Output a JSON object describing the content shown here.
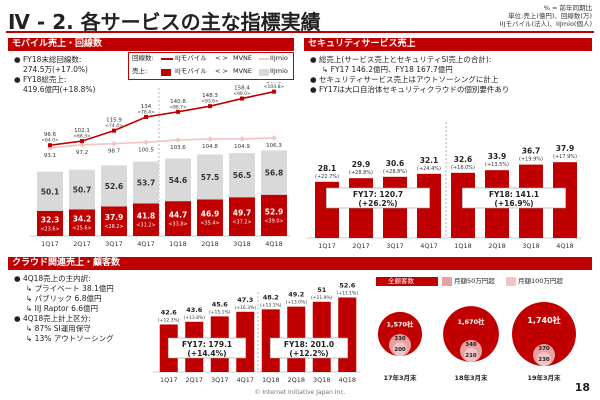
{
  "header": {
    "title": "Ⅳ - 2.  各サービスの主な指標実績",
    "notes": [
      "% = 前年同期比",
      "単位:売上(億円)、回線数(万)",
      "IIJモバイル(法人)、IIJmio(個人)"
    ]
  },
  "mobile": {
    "heading": "モバイル売上・回線数",
    "bullets": [
      "FY18末総回線数:",
      "274.5万(+17.0%)",
      "FY18総売上:",
      "419.6億円(+18.8%)"
    ],
    "legend": {
      "lines_label": "回線数:",
      "sales_label": "売上:",
      "iij_mobile": "IIJモバイル",
      "mvne": "MVNE",
      "iijmio": "IIJmio",
      "separator": "< >"
    }
  },
  "security": {
    "heading": "セキュリティサービス売上",
    "bullets": [
      "総売上(サービス売上とセキュリティSI売上の合計):",
      "FY17 146.2億円、FY18 167.7億円",
      "セキュリティサービス売上はアウトソーシングに計上",
      "FY17は大口自治体セキュリティクラウドの個別要件あり"
    ],
    "fy17_label": "FY17: 120.7",
    "fy17_pct": "(+26.2%)",
    "fy18_label": "FY18: 141.1",
    "fy18_pct": "(+16.9%)"
  },
  "cloud": {
    "heading": "クラウド関連売上・顧客数",
    "bullets": [
      "4Q18売上の主内訳:",
      "プライベート 38.1億円",
      "パブリック  6.8億円",
      "IIJ Raptor  6.6億円",
      "4Q18売上計上区分:",
      "87%  SI運用保守",
      "13%  アウトソーシング"
    ],
    "fy17_label": "FY17: 179.1",
    "fy17_pct": "(+14.4%)",
    "fy18_label": "FY18: 201.0",
    "fy18_pct": "(+12.2%)",
    "customers": {
      "legend": [
        "全顧客数",
        "月額50万円超",
        "月額100万円超"
      ],
      "years": [
        "17年3月末",
        "18年3月末",
        "19年3月末"
      ],
      "total": [
        "1,570社",
        "1,670社",
        "1,740社"
      ],
      "over50": [
        "330",
        "340",
        "370"
      ],
      "over100": [
        "200",
        "210",
        "230"
      ]
    }
  },
  "footer": {
    "copyright": "© Internet Initiative Japan Inc.",
    "page": "18"
  },
  "colors": {
    "accent": "#c00000",
    "mid_red": "#d83b3b",
    "light_red": "#e8a0a0",
    "pink": "#f2c4c4",
    "gray": "#d9d9d9"
  },
  "chart_data": [
    {
      "type": "bar",
      "title": "モバイル売上・回線数",
      "categories": [
        "1Q17",
        "2Q17",
        "3Q17",
        "4Q17",
        "1Q18",
        "2Q18",
        "3Q18",
        "4Q18"
      ],
      "series": [
        {
          "name": "IIJモバイル",
          "values": [
            32.3,
            34.2,
            37.9,
            41.8,
            44.7,
            46.9,
            49.7,
            52.9
          ],
          "labels": [
            "<23.6>",
            "<25.6>",
            "<28.2>",
            "<31.2>",
            "<33.8>",
            "<35.4>",
            "<37.2>",
            "<39.0>"
          ]
        },
        {
          "name": "IIJmio",
          "values": [
            50.1,
            50.7,
            52.6,
            53.7,
            54.6,
            57.5,
            56.5,
            56.8
          ]
        }
      ],
      "lines": [
        {
          "name": "IIJモバイル",
          "values": [
            96.6,
            102.1,
            115.9,
            134.0,
            140.8,
            148.3,
            158.4,
            167.5
          ],
          "labels": [
            "<64.0>",
            "<68.3>",
            "<74.4>",
            "<78.4>",
            "<88.7>",
            "<93.6>",
            "<99.0>",
            "<104.8>"
          ]
        },
        {
          "name": "IIJmio",
          "values": [
            93.1,
            97.2,
            98.7,
            100.5,
            103.6,
            104.8,
            104.9,
            106.3
          ]
        }
      ]
    },
    {
      "type": "bar",
      "title": "セキュリティサービス売上",
      "categories": [
        "1Q17",
        "2Q17",
        "3Q17",
        "4Q17",
        "1Q18",
        "2Q18",
        "3Q18",
        "4Q18"
      ],
      "values": [
        28.1,
        29.9,
        30.6,
        32.1,
        32.6,
        33.9,
        36.7,
        37.9
      ],
      "pct": [
        "(+22.7%)",
        "(+28.8%)",
        "(+28.8%)",
        "(+24.4%)",
        "(+16.0%)",
        "(+13.5%)",
        "(+19.9%)",
        "(+17.9%)"
      ]
    },
    {
      "type": "bar",
      "title": "クラウド関連売上・顧客数",
      "categories": [
        "1Q17",
        "2Q17",
        "3Q17",
        "4Q17",
        "1Q18",
        "2Q18",
        "3Q18",
        "4Q18"
      ],
      "values": [
        42.6,
        43.6,
        45.6,
        47.3,
        48.2,
        49.2,
        51.0,
        52.6
      ],
      "pct": [
        "(+12.3%)",
        "(+13.8%)",
        "(+15.1%)",
        "(+16.3%)",
        "(+13.1%)",
        "(+13.0%)",
        "(+11.9%)",
        "(+11.1%)"
      ]
    }
  ]
}
